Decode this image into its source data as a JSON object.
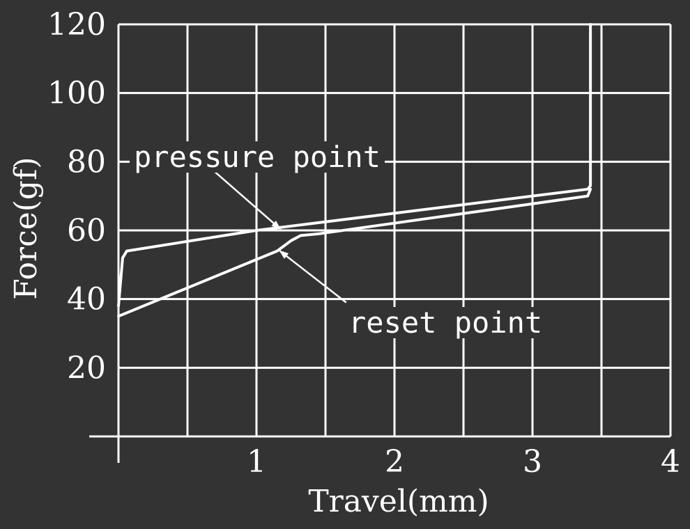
{
  "chart_data": {
    "type": "line",
    "title": "",
    "xlabel": "Travel(mm)",
    "ylabel": "Force(gf)",
    "xlim": [
      0,
      4
    ],
    "ylim": [
      0,
      120
    ],
    "x_ticks": [
      0,
      1,
      2,
      3,
      4
    ],
    "x_tick_labels": [
      "",
      "1",
      "2",
      "3",
      "4"
    ],
    "y_ticks": [
      20,
      40,
      60,
      80,
      100,
      120
    ],
    "y_tick_labels": [
      "20",
      "40",
      "60",
      "80",
      "100",
      120
    ],
    "grid": true,
    "series": [
      {
        "x": [
          0.0,
          0.03,
          0.06,
          1.0,
          3.4,
          3.42,
          3.42
        ],
        "y": [
          38,
          52,
          54,
          60,
          72,
          73,
          120
        ]
      },
      {
        "x": [
          3.42,
          3.4,
          1.45,
          1.32,
          1.25,
          1.15,
          0.0
        ],
        "y": [
          72,
          70,
          59,
          58.5,
          57,
          54,
          35
        ]
      }
    ],
    "annotations": [
      {
        "text": "pressure point",
        "point": [
          1.17,
          60.5
        ],
        "from": [
          0.7,
          77
        ]
      },
      {
        "text": "reset point",
        "point": [
          1.17,
          54
        ],
        "from": [
          1.65,
          39
        ]
      }
    ]
  }
}
